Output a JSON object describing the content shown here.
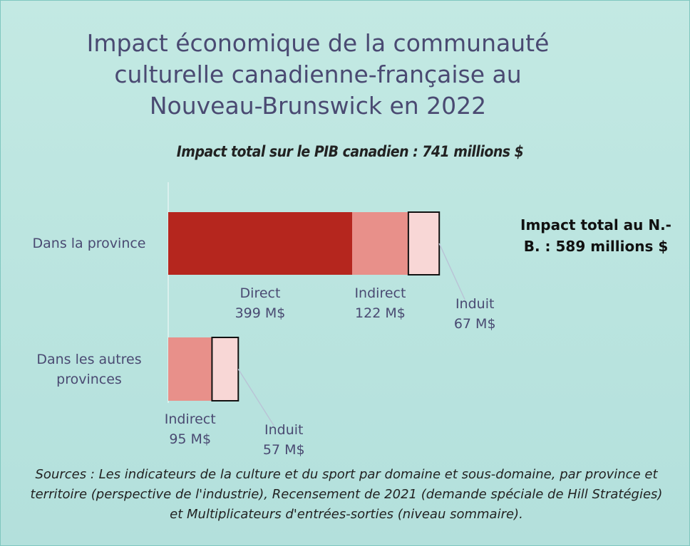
{
  "chart_data": {
    "type": "stacked-bar-horizontal",
    "title": "Impact économique de la communauté culturelle canadienne-française au Nouveau-Brunswick en 2022",
    "subtitle": "Impact total sur le PIB canadien : 741 millions $",
    "categories": [
      "Dans la province",
      "Dans les autres provinces"
    ],
    "series": [
      {
        "name": "Direct",
        "color": "#b5261e",
        "values": [
          399,
          null
        ],
        "value_labels": [
          "399 M$",
          null
        ]
      },
      {
        "name": "Indirect",
        "color": "#e8908a",
        "values": [
          122,
          95
        ],
        "value_labels": [
          "122 M$",
          "95 M$"
        ]
      },
      {
        "name": "Induit",
        "color": "#f8d7d6",
        "values": [
          67,
          57
        ],
        "value_labels": [
          "67 M$",
          "57 M$"
        ]
      }
    ],
    "annotations": [
      "Impact total au N.-B. : 589 millions $"
    ],
    "source": "Sources : Les indicateurs de la culture et du sport par domaine et sous-domaine, par province et territoire (perspective de l'industrie), Recensement de 2021 (demande spéciale de Hill Stratégies) et Multiplicateurs d'entrées-sorties (niveau sommaire)."
  }
}
